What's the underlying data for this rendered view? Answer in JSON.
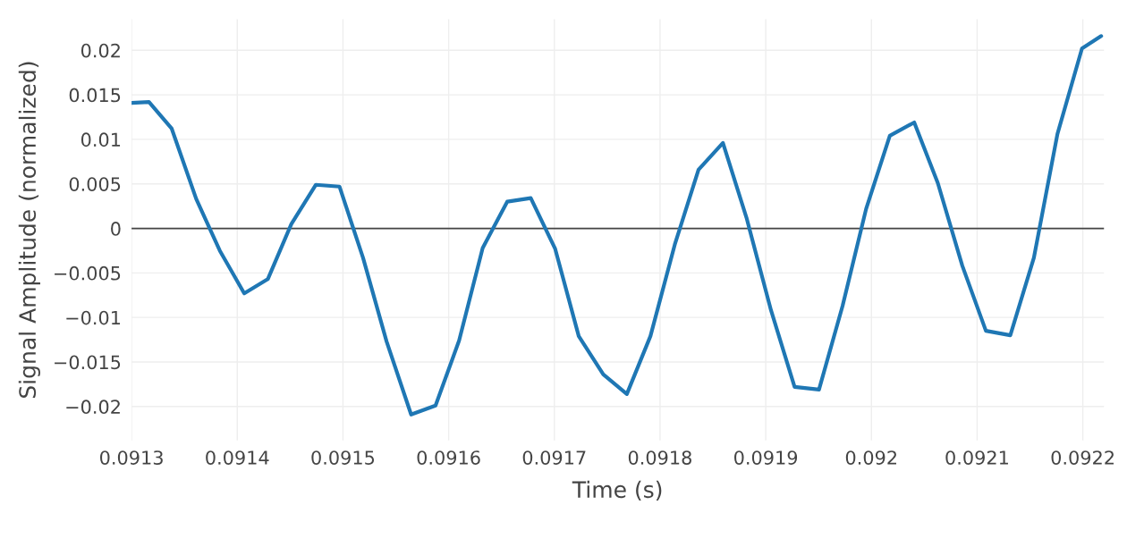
{
  "chart_data": {
    "type": "line",
    "xlabel": "Time (s)",
    "ylabel": "Signal Amplitude (normalized)",
    "x": [
      0.0913,
      0.0913165,
      0.091338,
      0.0913612,
      0.0913835,
      0.0914066,
      0.0914289,
      0.0914512,
      0.0914744,
      0.0914967,
      0.091519,
      0.0915413,
      0.0915645,
      0.0915876,
      0.0916099,
      0.0916322,
      0.0916554,
      0.0916777,
      0.0917008,
      0.0917231,
      0.0917463,
      0.0917686,
      0.0917909,
      0.091814,
      0.0918364,
      0.0918595,
      0.0918818,
      0.091905,
      0.0919273,
      0.0919504,
      0.0919727,
      0.091995,
      0.0920174,
      0.0920405,
      0.0920628,
      0.092086,
      0.0921083,
      0.0921314,
      0.0921537,
      0.092176,
      0.0921992,
      0.0922174
    ],
    "series": [
      {
        "color": "#1f77b4",
        "values": [
          0.0141,
          0.0142,
          0.0112,
          0.0033,
          -0.0025,
          -0.0073,
          -0.0057,
          0.0005,
          0.0049,
          0.0047,
          -0.0033,
          -0.0127,
          -0.0209,
          -0.0199,
          -0.0126,
          -0.0022,
          0.003,
          0.0034,
          -0.0023,
          -0.0121,
          -0.0164,
          -0.0186,
          -0.0121,
          -0.0018,
          0.0066,
          0.0096,
          0.0012,
          -0.0092,
          -0.0178,
          -0.0181,
          -0.0087,
          0.0022,
          0.0104,
          0.0119,
          0.0051,
          -0.0042,
          -0.0115,
          -0.012,
          -0.0033,
          0.0106,
          0.0202,
          0.0216
        ]
      }
    ],
    "xlim": [
      0.0913,
      0.09222
    ],
    "xticks": [
      0.0913,
      0.0914,
      0.0915,
      0.0916,
      0.0917,
      0.0918,
      0.0919,
      0.092,
      0.0921,
      0.0922
    ],
    "ylim": [
      -0.0238,
      0.0235
    ],
    "yticks": [
      {
        "value": -0.02,
        "label": "−0.02"
      },
      {
        "value": -0.015,
        "label": "−0.015"
      },
      {
        "value": -0.01,
        "label": "−0.01"
      },
      {
        "value": -0.005,
        "label": "−0.005"
      },
      0,
      0.005,
      0.01,
      0.015,
      0.02
    ],
    "ref_lines": [
      {
        "axis": "y",
        "value": 0,
        "color": "#444444",
        "line_style": "solid"
      }
    ],
    "grid": true,
    "marker": "none",
    "line_style": "solid"
  }
}
